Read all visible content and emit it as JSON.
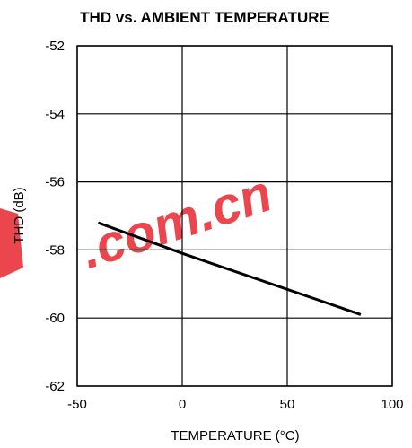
{
  "chart_data": {
    "type": "line",
    "title": "THD vs. AMBIENT TEMPERATURE",
    "xlabel": "TEMPERATURE (°C)",
    "ylabel": "THD (dB)",
    "xlim": [
      -50,
      100
    ],
    "ylim": [
      -62,
      -52
    ],
    "xticks": [
      -50,
      0,
      50,
      100
    ],
    "yticks": [
      -52,
      -54,
      -56,
      -58,
      -60,
      -62
    ],
    "grid": true,
    "legend": "none",
    "series": [
      {
        "x": [
          -40,
          0,
          85
        ],
        "y": [
          -57.2,
          -58.1,
          -59.9
        ],
        "color": "#000000"
      }
    ]
  },
  "watermark": {
    "text": ".com.cn",
    "color": "#e8262f"
  }
}
